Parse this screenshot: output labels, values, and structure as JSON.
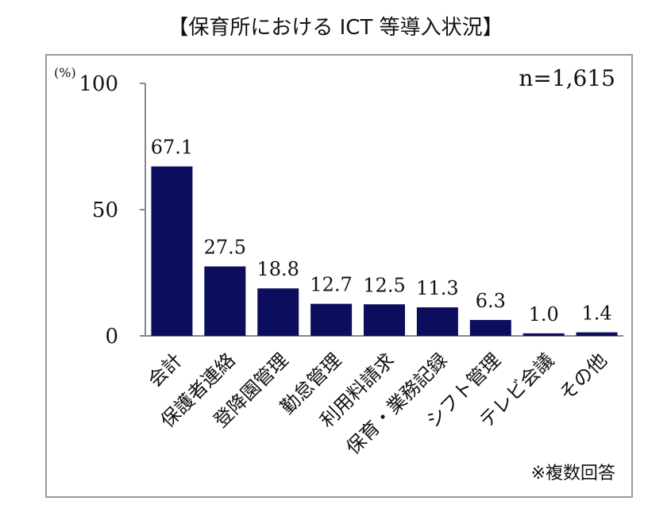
{
  "chart_data": {
    "type": "bar",
    "title": "【保育所における ICT 等導入状況】",
    "ylabel": "(%)",
    "ylim": [
      0,
      100
    ],
    "yticks": [
      "0",
      "50",
      "100"
    ],
    "sample_size": "n=1,615",
    "note": "※複数回答",
    "categories": [
      "会計",
      "保護者連絡",
      "登降園管理",
      "勤怠管理",
      "利用料請求",
      "保育・業務記録",
      "シフト管理",
      "テレビ会議",
      "その他"
    ],
    "values": [
      67.1,
      27.5,
      18.8,
      12.7,
      12.5,
      11.3,
      6.3,
      1.0,
      1.4
    ],
    "value_labels": [
      "67.1",
      "27.5",
      "18.8",
      "12.7",
      "12.5",
      "11.3",
      "6.3",
      "1.0",
      "1.4"
    ],
    "bar_color": "#0d0d5e",
    "grid": false
  }
}
